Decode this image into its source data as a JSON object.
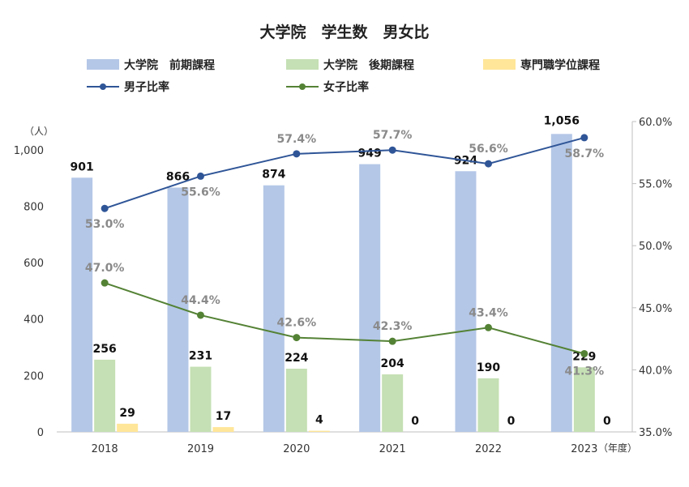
{
  "chart_data": {
    "type": "bar",
    "title": "大学院　学生数　男女比",
    "categories": [
      "2018",
      "2019",
      "2020",
      "2021",
      "2022",
      "2023"
    ],
    "x_unit_label": "（年度）",
    "y_unit_label": "（人）",
    "ylim": [
      0,
      1100
    ],
    "y_ticks": [
      "0",
      "200",
      "400",
      "600",
      "800",
      "1,000"
    ],
    "y2lim": [
      35,
      60
    ],
    "y2_ticks": [
      "35.0%",
      "40.0%",
      "45.0%",
      "50.0%",
      "55.0%",
      "60.0%"
    ],
    "grid": false,
    "legend_position": "top",
    "series": [
      {
        "name": "大学院　前期課程",
        "kind": "bar",
        "color": "#b4c7e7",
        "values": [
          901,
          866,
          874,
          949,
          924,
          1056
        ],
        "labels": [
          "901",
          "866",
          "874",
          "949",
          "924",
          "1,056"
        ]
      },
      {
        "name": "大学院　後期課程",
        "kind": "bar",
        "color": "#c5e0b4",
        "values": [
          256,
          231,
          224,
          204,
          190,
          229
        ],
        "labels": [
          "256",
          "231",
          "224",
          "204",
          "190",
          "229"
        ]
      },
      {
        "name": "専門職学位課程",
        "kind": "bar",
        "color": "#ffe699",
        "values": [
          29,
          17,
          4,
          0,
          0,
          0
        ],
        "labels": [
          "29",
          "17",
          "4",
          "0",
          "0",
          "0"
        ]
      },
      {
        "name": "男子比率",
        "kind": "line",
        "axis": "right",
        "color": "#2f5597",
        "values": [
          53.0,
          55.6,
          57.4,
          57.7,
          56.6,
          58.7
        ],
        "labels": [
          "53.0%",
          "55.6%",
          "57.4%",
          "57.7%",
          "56.6%",
          "58.7%"
        ]
      },
      {
        "name": "女子比率",
        "kind": "line",
        "axis": "right",
        "color": "#548235",
        "values": [
          47.0,
          44.4,
          42.6,
          42.3,
          43.4,
          41.3
        ],
        "labels": [
          "47.0%",
          "44.4%",
          "42.6%",
          "42.3%",
          "43.4%",
          "41.3%"
        ]
      }
    ]
  }
}
